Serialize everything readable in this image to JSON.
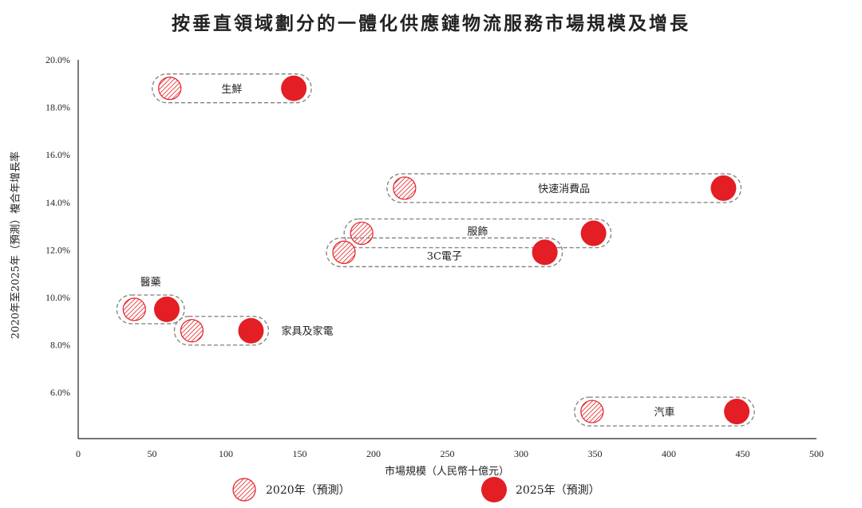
{
  "chart_data": {
    "type": "scatter",
    "title": "按垂直領域劃分的一體化供應鏈物流服務市場規模及增長",
    "xlabel": "市場規模（人民幣十億元）",
    "ylabel": "2020年至2025年（預測）複合年增長率",
    "xlim": [
      0,
      500
    ],
    "ylim": [
      4.0,
      20.0
    ],
    "xticks": [
      "0",
      "50",
      "100",
      "150",
      "200",
      "250",
      "300",
      "350",
      "400",
      "450",
      "500"
    ],
    "yticks": [
      "6.0%",
      "8.0%",
      "10.0%",
      "12.0%",
      "14.0%",
      "16.0%",
      "18.0%",
      "20.0%"
    ],
    "legend": [
      "2020年（預測）",
      "2025年（預測）"
    ],
    "legend_position": "bottom",
    "color": "#e31e24",
    "series": [
      {
        "name": "生鮮",
        "x2020": 62,
        "x2025": 146,
        "cagr": 18.8,
        "label_pos": "center"
      },
      {
        "name": "快速消費品",
        "x2020": 221,
        "x2025": 437,
        "cagr": 14.6,
        "label_pos": "center"
      },
      {
        "name": "服飾",
        "x2020": 192,
        "x2025": 349,
        "cagr": 12.7,
        "label_pos": "center-up"
      },
      {
        "name": "3C電子",
        "x2020": 180,
        "x2025": 316,
        "cagr": 11.9,
        "label_pos": "center-down"
      },
      {
        "name": "醫藥",
        "x2020": 38,
        "x2025": 60,
        "cagr": 9.5,
        "label_pos": "above"
      },
      {
        "name": "家具及家電",
        "x2020": 77,
        "x2025": 117,
        "cagr": 8.6,
        "label_pos": "right"
      },
      {
        "name": "汽車",
        "x2020": 348,
        "x2025": 446,
        "cagr": 5.2,
        "label_pos": "center"
      }
    ]
  }
}
